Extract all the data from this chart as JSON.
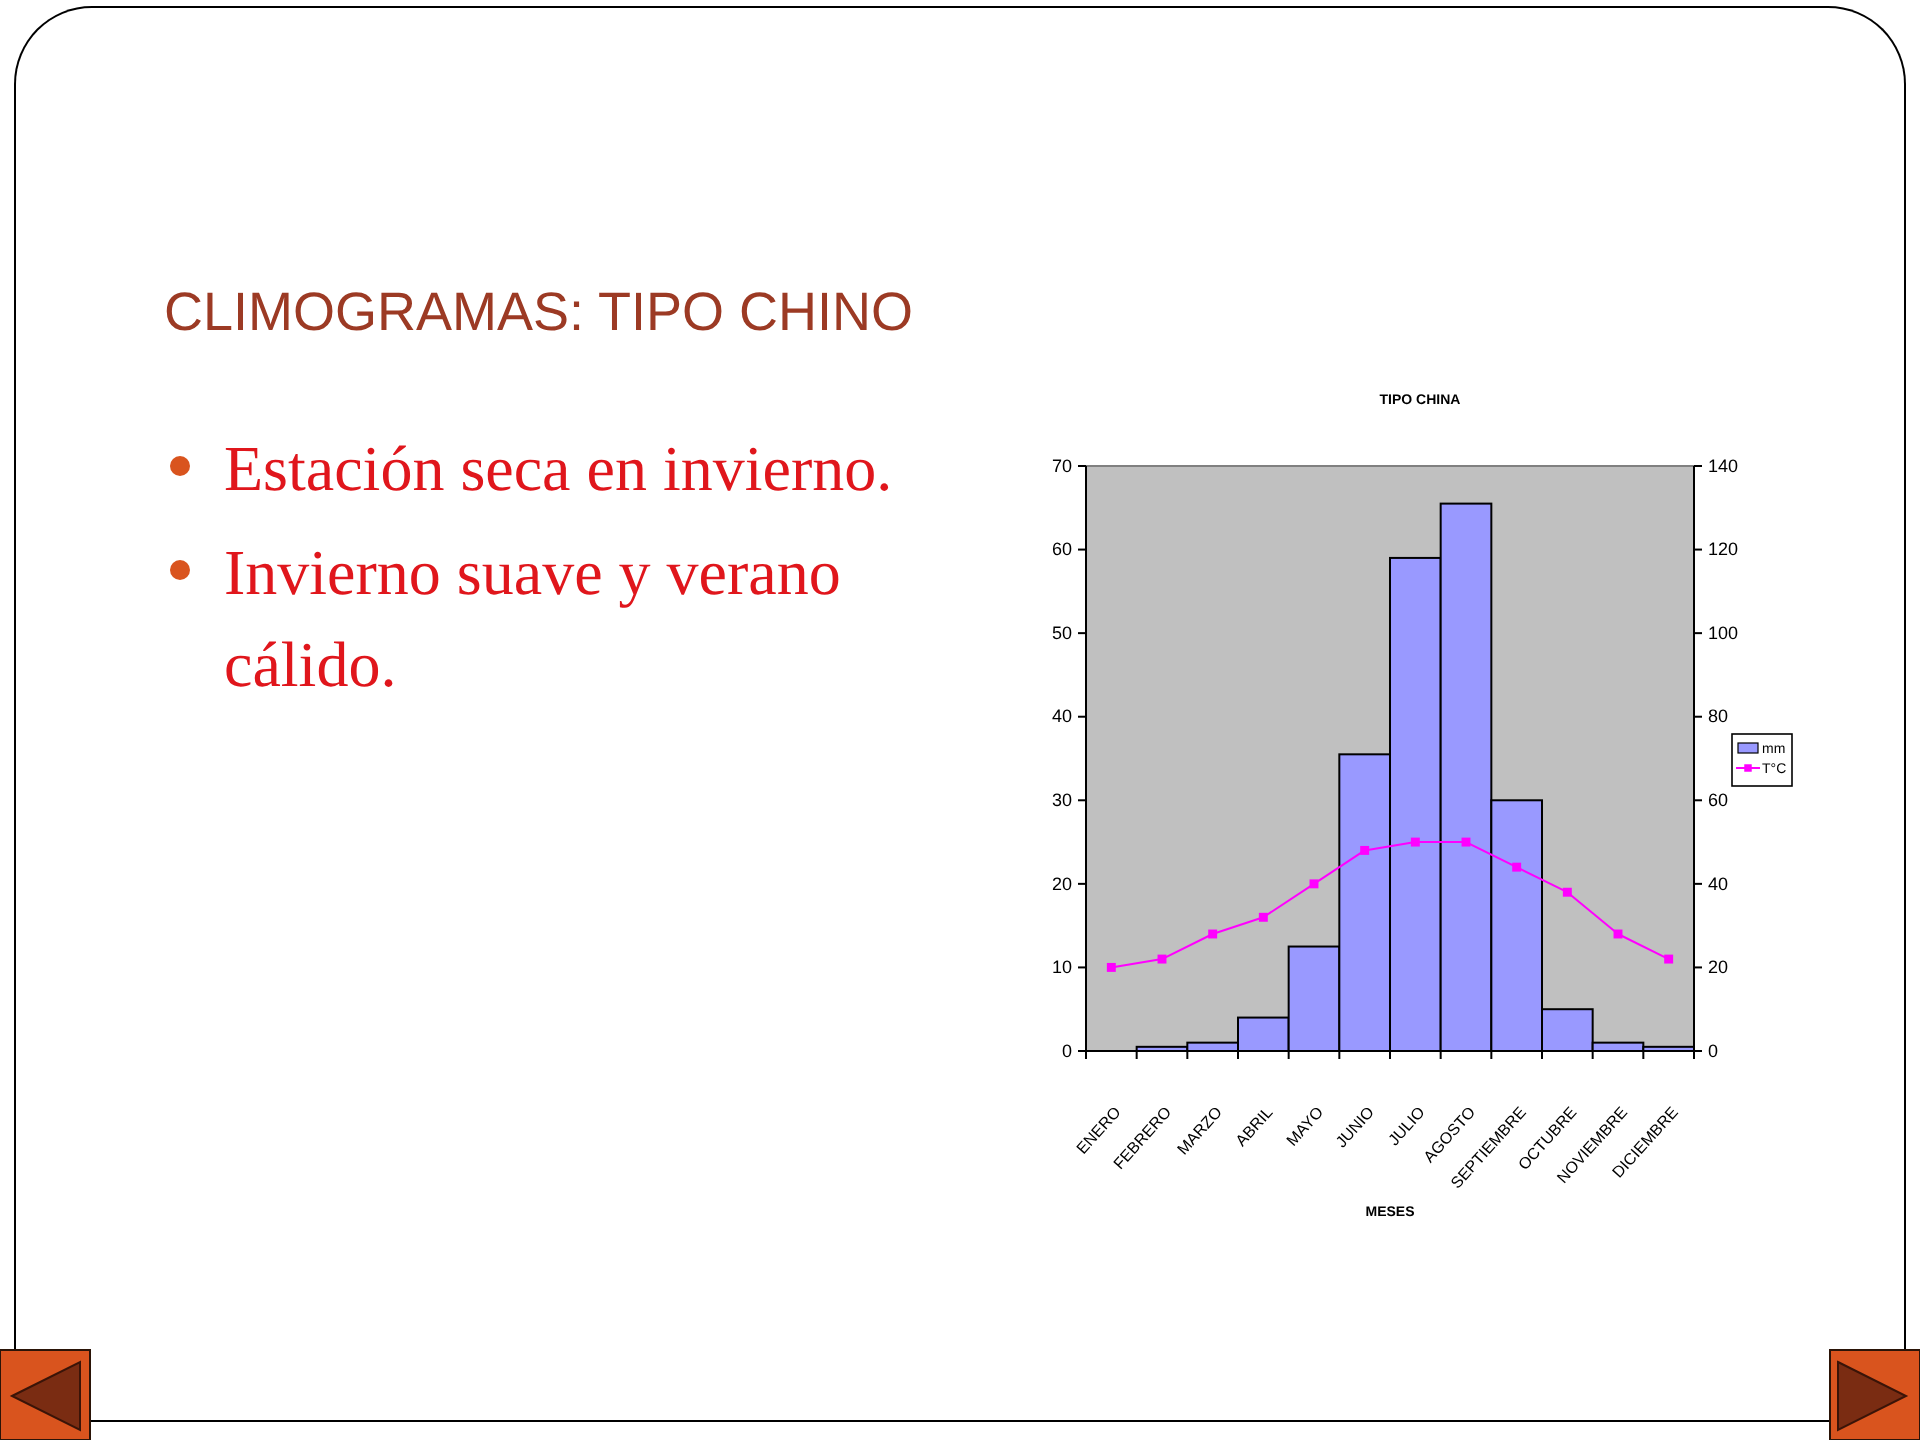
{
  "chart_data": {
    "type": "bar",
    "title": "TIPO CHINA",
    "xlabel": "MESES",
    "annotations": [
      "CLIMOGRAMAS: TIPO CHINO",
      "Estación seca en invierno.",
      "Invierno suave y verano cálido."
    ],
    "categories": [
      "ENERO",
      "FEBRERO",
      "MARZO",
      "ABRIL",
      "MAYO",
      "JUNIO",
      "JULIO",
      "AGOSTO",
      "SEPTIEMBRE",
      "OCTUBRE",
      "NOVIEMBRE",
      "DICIEMBRE"
    ],
    "series": [
      {
        "name": "mm",
        "axis": "y2",
        "color": "#9999ff",
        "values": [
          0,
          1,
          2,
          8,
          25,
          71,
          118,
          131,
          60,
          10,
          2,
          1
        ]
      },
      {
        "name": "T°C",
        "type": "line",
        "axis": "y",
        "color": "#ff00ff",
        "values": [
          10,
          11,
          14,
          16,
          20,
          24,
          25,
          25,
          22,
          19,
          14,
          11
        ]
      }
    ],
    "ylim": [
      0,
      70
    ],
    "yticks": [
      0,
      10,
      20,
      30,
      40,
      50,
      60,
      70
    ],
    "y2lim": [
      0,
      140
    ],
    "y2ticks": [
      0,
      20,
      40,
      60,
      80,
      100,
      120,
      140
    ],
    "legend": "right",
    "marker": "square"
  }
}
